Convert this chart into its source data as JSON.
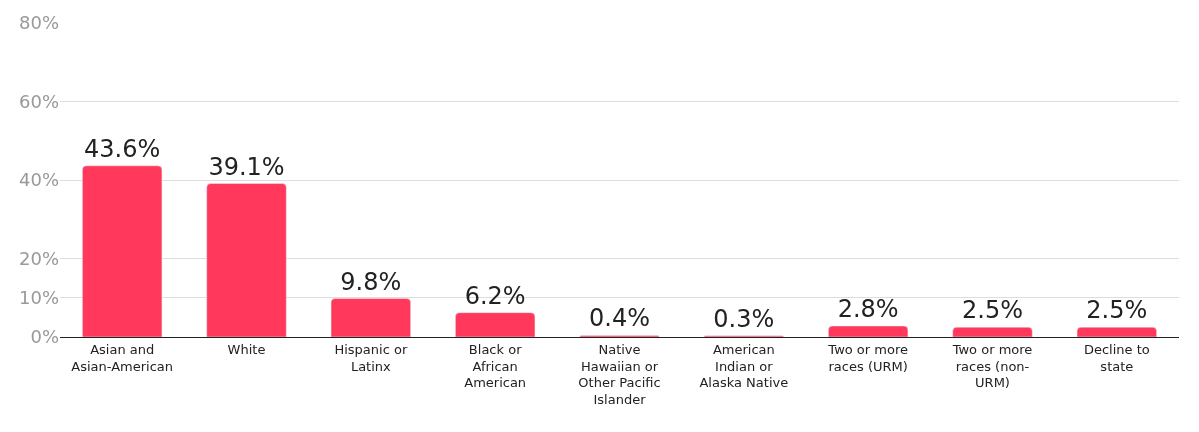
{
  "chart_data": {
    "type": "bar",
    "categories": [
      "Asian and Asian-American",
      "White",
      "Hispanic or Latinx",
      "Black or African American",
      "Native Hawaiian or Other Pacific Islander",
      "American Indian or Alaska Native",
      "Two or more races (URM)",
      "Two or more races (non-URM)",
      "Decline to state"
    ],
    "values": [
      43.6,
      39.1,
      9.8,
      6.2,
      0.4,
      0.3,
      2.8,
      2.5,
      2.5
    ],
    "value_labels": [
      "43.6%",
      "39.1%",
      "9.8%",
      "6.2%",
      "0.4%",
      "0.3%",
      "2.8%",
      "2.5%",
      "2.5%"
    ],
    "color": "#ff385c",
    "ylim": [
      0,
      80
    ],
    "yticks": [
      {
        "value": 0,
        "label": "0%"
      },
      {
        "value": 10,
        "label": "10%"
      },
      {
        "value": 20,
        "label": "20%"
      },
      {
        "value": 40,
        "label": "40%"
      },
      {
        "value": 60,
        "label": "60%"
      },
      {
        "value": 80,
        "label": "80%"
      }
    ],
    "grid": "y"
  }
}
